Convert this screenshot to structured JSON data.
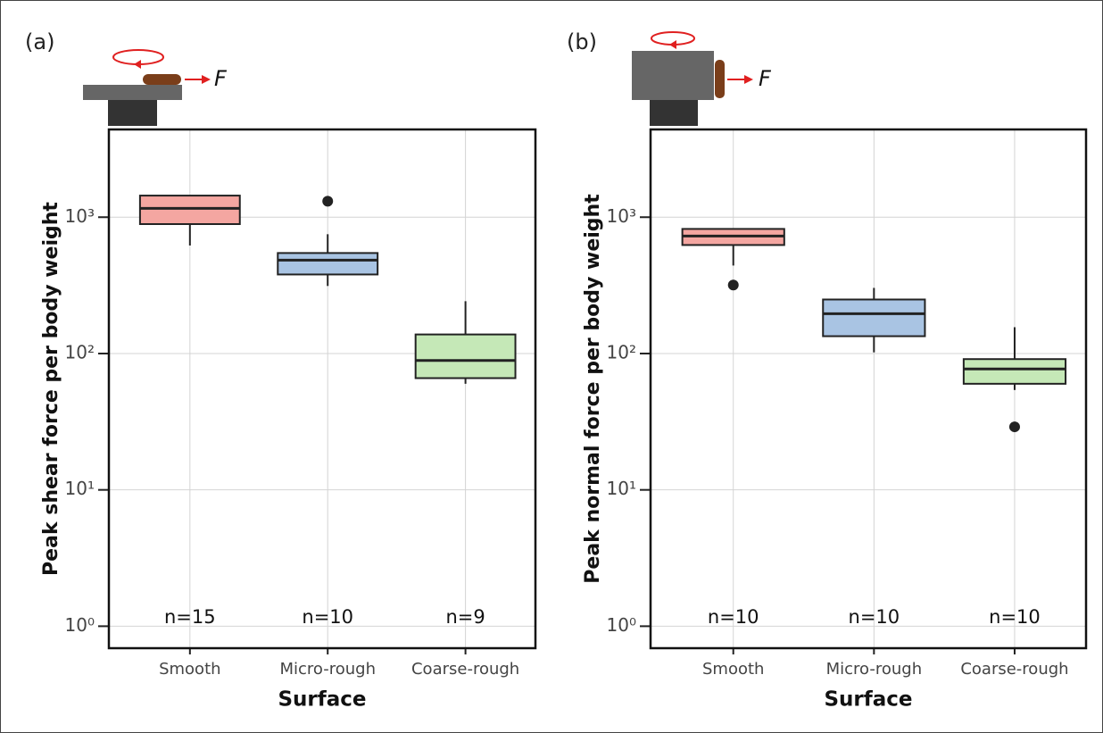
{
  "chart_data": [
    {
      "type": "box",
      "panel_label": "(a)",
      "force_label": "F",
      "ylabel": "Peak shear force per body weight",
      "xlabel": "Surface",
      "categories": [
        "Smooth",
        "Micro-rough",
        "Coarse-rough"
      ],
      "boxes": [
        {
          "color": "#f4a6a1",
          "whislo": 620,
          "q1": 890,
          "med": 1160,
          "q3": 1440,
          "whishi": 1440,
          "fliers": []
        },
        {
          "color": "#a9c4e3",
          "whislo": 313,
          "q1": 380,
          "med": 484,
          "q3": 546,
          "whishi": 750,
          "fliers": [
            1310
          ]
        },
        {
          "color": "#c5e8b7",
          "whislo": 60,
          "q1": 66,
          "med": 89,
          "q3": 138,
          "whishi": 242,
          "fliers": []
        }
      ],
      "n_labels": [
        "n=15",
        "n=10",
        "n=9"
      ],
      "log_scale": true,
      "grid": true,
      "ylim": [
        0.69,
        4400
      ],
      "yticks": [
        {
          "value": 1,
          "label": "10⁰"
        },
        {
          "value": 10,
          "label": "10¹"
        },
        {
          "value": 100,
          "label": "10²"
        },
        {
          "value": 1000,
          "label": "10³"
        }
      ]
    },
    {
      "type": "box",
      "panel_label": "(b)",
      "force_label": "F",
      "ylabel": "Peak normal force per body weight",
      "xlabel": "Surface",
      "categories": [
        "Smooth",
        "Micro-rough",
        "Coarse-rough"
      ],
      "boxes": [
        {
          "color": "#f4a6a1",
          "whislo": 442,
          "q1": 625,
          "med": 728,
          "q3": 820,
          "whishi": 820,
          "fliers": [
            318
          ]
        },
        {
          "color": "#a9c4e3",
          "whislo": 102,
          "q1": 134,
          "med": 196,
          "q3": 249,
          "whishi": 303,
          "fliers": []
        },
        {
          "color": "#c5e8b7",
          "whislo": 54,
          "q1": 60,
          "med": 77,
          "q3": 91,
          "whishi": 156,
          "fliers": [
            29
          ]
        }
      ],
      "n_labels": [
        "n=10",
        "n=10",
        "n=10"
      ],
      "log_scale": true,
      "grid": true,
      "ylim": [
        0.69,
        4400
      ],
      "yticks": [
        {
          "value": 1,
          "label": "10⁰"
        },
        {
          "value": 10,
          "label": "10¹"
        },
        {
          "value": 100,
          "label": "10²"
        },
        {
          "value": 1000,
          "label": "10³"
        }
      ]
    }
  ]
}
